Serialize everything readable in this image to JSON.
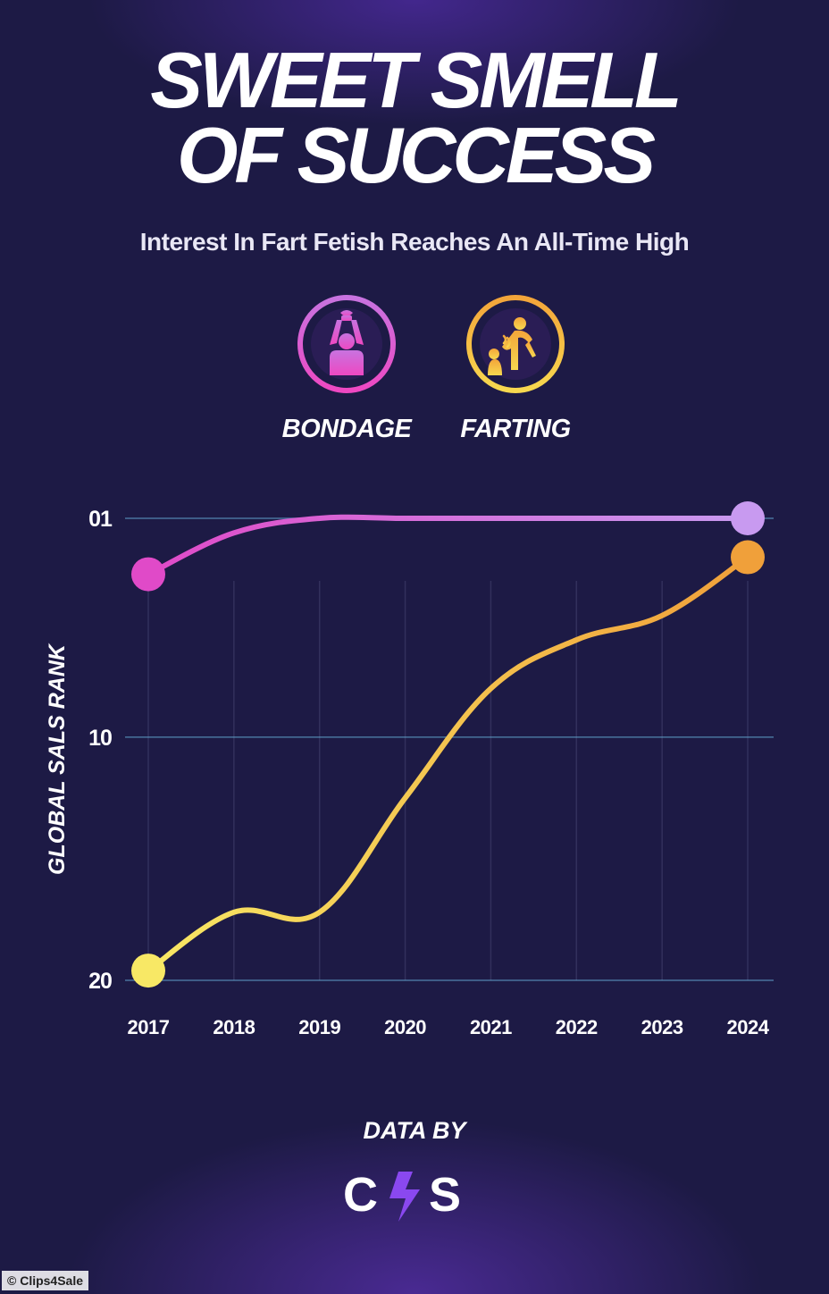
{
  "title": {
    "line1": "SWEET SMELL",
    "line2": "OF SUCCESS"
  },
  "subtitle": "Interest In Fart Fetish Reaches An All-Time High",
  "legend": [
    {
      "label": "BONDAGE",
      "icon": "bondage-icon",
      "color": "#d45ce0"
    },
    {
      "label": "FARTING",
      "icon": "farting-icon",
      "color": "#f0b53a"
    }
  ],
  "chart_data": {
    "type": "line",
    "title": "SWEET SMELL OF SUCCESS",
    "subtitle": "Interest In Fart Fetish Reaches An All-Time High",
    "xlabel": "",
    "ylabel": "GLOBAL SALS RANK",
    "categories": [
      "2017",
      "2018",
      "2019",
      "2020",
      "2021",
      "2022",
      "2023",
      "2024"
    ],
    "y_ticks": [
      {
        "value": 1,
        "label": "01"
      },
      {
        "value": 10,
        "label": "10"
      },
      {
        "value": 20,
        "label": "20"
      }
    ],
    "ylim": [
      1,
      20
    ],
    "y_inverted": true,
    "grid": true,
    "series": [
      {
        "name": "BONDAGE",
        "values": [
          3.3,
          1.6,
          1,
          1,
          1,
          1,
          1,
          1
        ],
        "color_start": "#e04ac8",
        "color_end": "#c89af0"
      },
      {
        "name": "FARTING",
        "values": [
          19.6,
          17.2,
          17.2,
          12.5,
          8,
          6,
          5,
          2.6
        ],
        "color_start": "#f8e865",
        "color_end": "#f0a03a"
      }
    ]
  },
  "footer": {
    "label": "DATA BY",
    "logo_text": "C4S"
  },
  "credit": "© Clips4Sale"
}
